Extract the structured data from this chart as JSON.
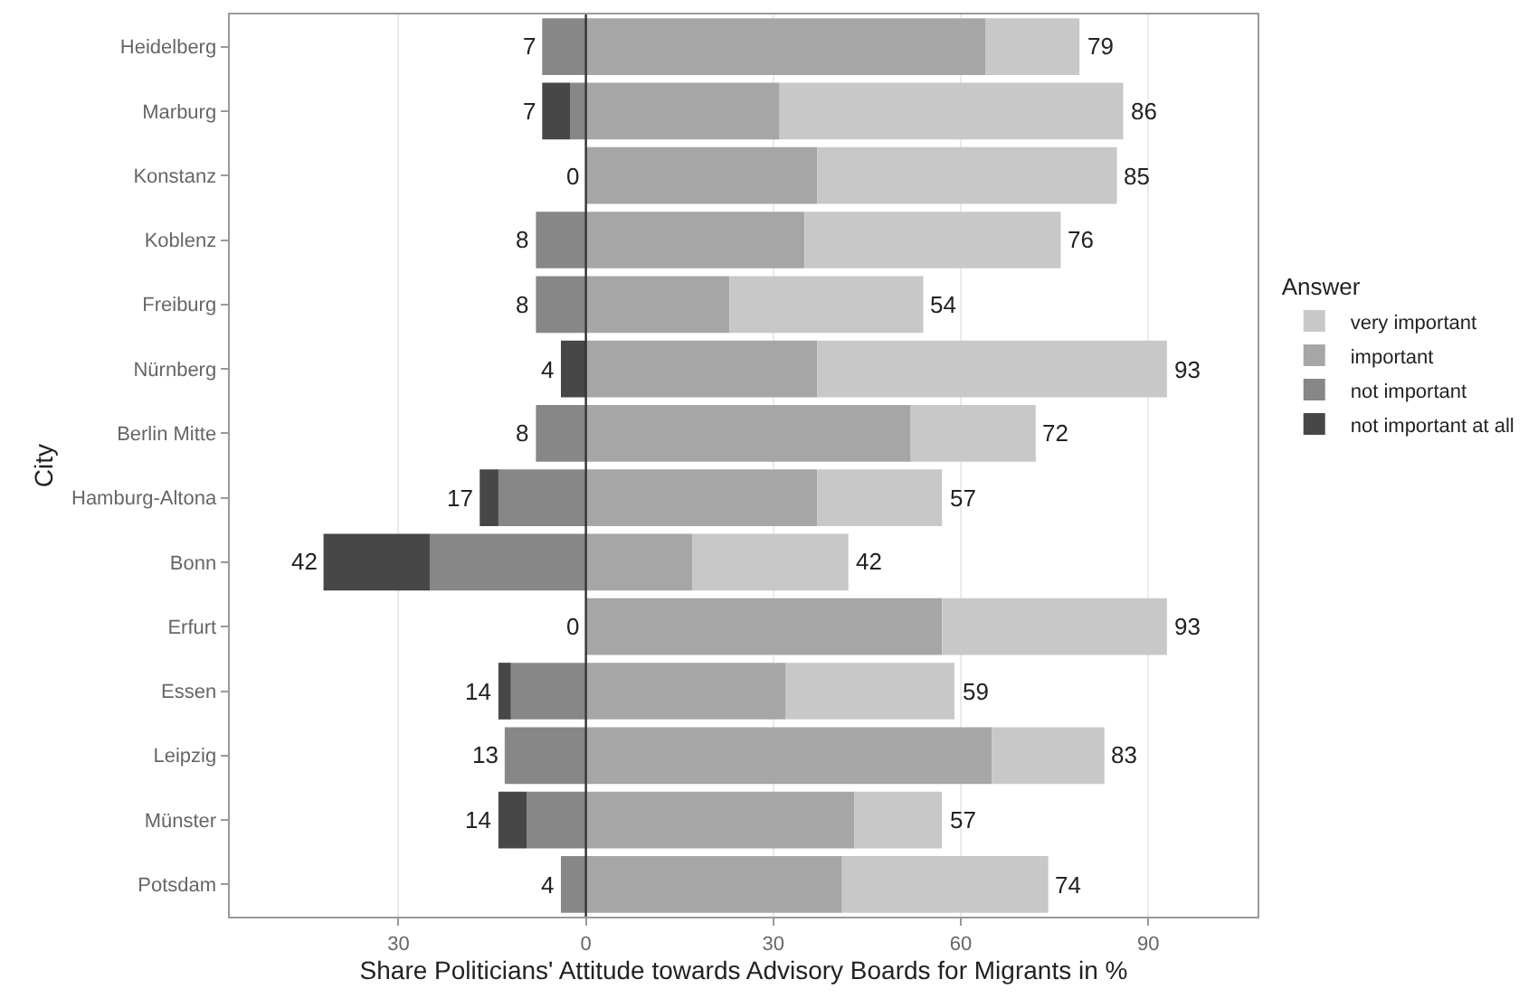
{
  "chart_data": {
    "type": "bar",
    "orientation": "horizontal",
    "stacked": true,
    "xlabel": "Share Politicians' Attitude towards Advisory Boards for Migrants in %",
    "ylabel": "City",
    "legend_title": "Answer",
    "categories": [
      "Heidelberg",
      "Marburg",
      "Konstanz",
      "Koblenz",
      "Freiburg",
      "Nürnberg",
      "Berlin Mitte",
      "Hamburg-Altona",
      "Bonn",
      "Erfurt",
      "Essen",
      "Leipzig",
      "Münster",
      "Potsdam"
    ],
    "series": [
      {
        "name": "important",
        "color": "#a6a6a6",
        "values": [
          64,
          31,
          37,
          35,
          23,
          37,
          52,
          37,
          17,
          57,
          32,
          65,
          43,
          41
        ]
      },
      {
        "name": "very important",
        "color": "#c8c8c8",
        "values": [
          15,
          55,
          48,
          41,
          31,
          56,
          20,
          20,
          25,
          36,
          27,
          18,
          14,
          33
        ]
      },
      {
        "name": "not important",
        "color": "#878787",
        "values": [
          -7,
          -2.5,
          0,
          -8,
          -8,
          0,
          -8,
          -14,
          -25,
          0,
          -12,
          -13,
          -9.5,
          -4
        ]
      },
      {
        "name": "not important at all",
        "color": "#474747",
        "values": [
          0,
          -4.5,
          0,
          0,
          0,
          -4,
          0,
          -3,
          -17,
          0,
          -2,
          0,
          -4.5,
          0
        ]
      }
    ],
    "annotations": [
      {
        "text": "79",
        "x": 79,
        "y": "Heidelberg"
      },
      {
        "text": "86",
        "x": 86,
        "y": "Marburg"
      },
      {
        "text": "85",
        "x": 85,
        "y": "Konstanz"
      },
      {
        "text": "76",
        "x": 76,
        "y": "Koblenz"
      },
      {
        "text": "54",
        "x": 54,
        "y": "Freiburg"
      },
      {
        "text": "93",
        "x": 93,
        "y": "Nürnberg"
      },
      {
        "text": "72",
        "x": 72,
        "y": "Berlin Mitte"
      },
      {
        "text": "57",
        "x": 57,
        "y": "Hamburg-Altona"
      },
      {
        "text": "42",
        "x": 42,
        "y": "Bonn"
      },
      {
        "text": "93",
        "x": 93,
        "y": "Erfurt"
      },
      {
        "text": "59",
        "x": 59,
        "y": "Essen"
      },
      {
        "text": "83",
        "x": 83,
        "y": "Leipzig"
      },
      {
        "text": "57",
        "x": 57,
        "y": "Münster"
      },
      {
        "text": "74",
        "x": 74,
        "y": "Potsdam"
      },
      {
        "text": "7",
        "x": -7,
        "y": "Heidelberg"
      },
      {
        "text": "7",
        "x": -7,
        "y": "Marburg"
      },
      {
        "text": "0",
        "x": 0,
        "y": "Konstanz"
      },
      {
        "text": "8",
        "x": -8,
        "y": "Koblenz"
      },
      {
        "text": "8",
        "x": -8,
        "y": "Freiburg"
      },
      {
        "text": "4",
        "x": -4,
        "y": "Nürnberg"
      },
      {
        "text": "8",
        "x": -8,
        "y": "Berlin Mitte"
      },
      {
        "text": "17",
        "x": -17,
        "y": "Hamburg-Altona"
      },
      {
        "text": "42",
        "x": -42,
        "y": "Bonn"
      },
      {
        "text": "0",
        "x": 0,
        "y": "Erfurt"
      },
      {
        "text": "14",
        "x": -14,
        "y": "Essen"
      },
      {
        "text": "13",
        "x": -13,
        "y": "Leipzig"
      },
      {
        "text": "14",
        "x": -14,
        "y": "Münster"
      },
      {
        "text": "4",
        "x": -4,
        "y": "Potsdam"
      }
    ],
    "xlim": [
      -57,
      107.5
    ],
    "xticks": [
      {
        "value": -30,
        "label": "30"
      },
      0,
      30,
      60,
      90
    ],
    "ref_lines": [
      {
        "axis": "x",
        "value": 0,
        "color": "#333333"
      }
    ],
    "grid": "x",
    "legend": "right"
  }
}
